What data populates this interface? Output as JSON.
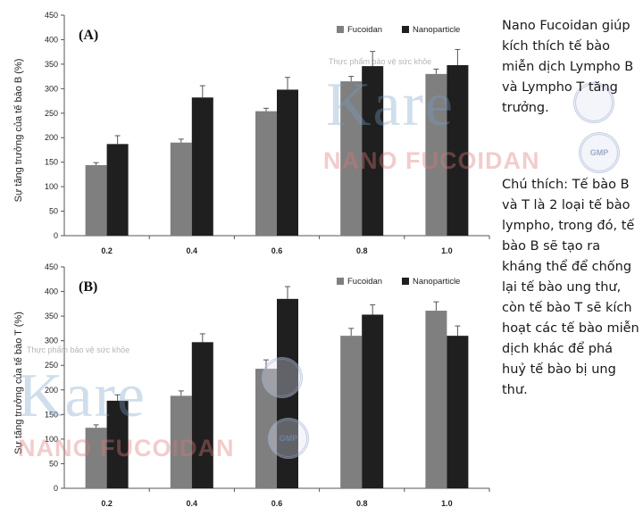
{
  "colors": {
    "fucoidan": "#7f7f7f",
    "nanoparticle": "#1f1f1f",
    "axis": "#555555",
    "error": "#555555"
  },
  "chart_data": [
    {
      "type": "bar",
      "panel": "(A)",
      "ylabel": "Sự tăng trưởng của tế bào B (%)",
      "categories": [
        "0.2",
        "0.4",
        "0.6",
        "0.8",
        "1.0"
      ],
      "ylim": [
        0,
        450
      ],
      "yticks": [
        0,
        50,
        100,
        150,
        200,
        250,
        300,
        350,
        400,
        450
      ],
      "legend_position": "top-right",
      "series": [
        {
          "name": "Fucoidan",
          "values": [
            144,
            190,
            254,
            315,
            330
          ],
          "errors": [
            5,
            7,
            6,
            10,
            10
          ]
        },
        {
          "name": "Nanoparticle",
          "values": [
            187,
            282,
            298,
            346,
            348
          ],
          "errors": [
            17,
            24,
            25,
            30,
            32
          ]
        }
      ]
    },
    {
      "type": "bar",
      "panel": "(B)",
      "ylabel": "Sự tăng trưởng của tế bào T (%)",
      "categories": [
        "0.2",
        "0.4",
        "0.6",
        "0.8",
        "1.0"
      ],
      "ylim": [
        0,
        450
      ],
      "yticks": [
        0,
        50,
        100,
        150,
        200,
        250,
        300,
        350,
        400,
        450
      ],
      "legend_position": "top-right",
      "series": [
        {
          "name": "Fucoidan",
          "values": [
            123,
            188,
            243,
            310,
            361
          ],
          "errors": [
            6,
            10,
            18,
            15,
            18
          ]
        },
        {
          "name": "Nanoparticle",
          "values": [
            178,
            297,
            385,
            353,
            310
          ],
          "errors": [
            12,
            17,
            25,
            20,
            20
          ]
        }
      ]
    }
  ],
  "watermark": {
    "brand": "Kare",
    "product": "NANO FUCOIDAN",
    "tagline": "Thực phẩm bảo vệ sức khỏe",
    "badge_gmp": "GMP"
  },
  "side": {
    "main": "Nano Fucoidan giúp kích thích tế bào miễn dịch Lympho B và Lympho T tăng trưởng.",
    "note": "Chú thích: Tế bào B và T là 2 loại tế bào lympho, trong đó, tế bào B sẽ tạo ra kháng thể để chống lại tế bào ung thư, còn tế bào T sẽ kích hoạt các tế bào miễn dịch khác để phá huỷ tế bào bị ung thư."
  }
}
